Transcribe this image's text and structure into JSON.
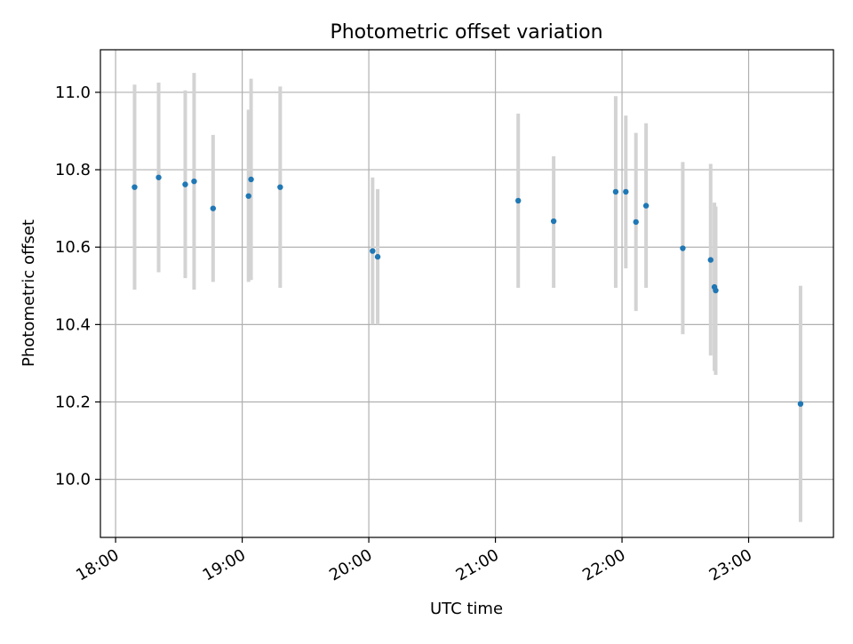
{
  "chart_data": {
    "type": "scatter",
    "title": "Photometric offset variation",
    "xlabel": "UTC time",
    "ylabel": "Photometric offset",
    "x_ticks": [
      "18:00",
      "19:00",
      "20:00",
      "21:00",
      "22:00",
      "23:00"
    ],
    "x_tick_hours": [
      18,
      19,
      20,
      21,
      22,
      23
    ],
    "y_ticks": [
      "10.0",
      "10.2",
      "10.4",
      "10.6",
      "10.8",
      "11.0"
    ],
    "y_tick_values": [
      10.0,
      10.2,
      10.4,
      10.6,
      10.8,
      11.0
    ],
    "xlim": [
      "17:53",
      "23:40"
    ],
    "xlim_hours": [
      17.88,
      23.67
    ],
    "ylim": [
      9.85,
      11.11
    ],
    "grid": true,
    "colors": {
      "point": "#1f77b4",
      "errorbar": "#d3d3d3",
      "grid": "#b0b0b0"
    },
    "series": [
      {
        "points": [
          {
            "time": "18:09",
            "x": 18.15,
            "y": 10.755,
            "ylow": 10.49,
            "yhigh": 11.02
          },
          {
            "time": "18:20",
            "x": 18.34,
            "y": 10.78,
            "ylow": 10.535,
            "yhigh": 11.025
          },
          {
            "time": "18:33",
            "x": 18.55,
            "y": 10.762,
            "ylow": 10.52,
            "yhigh": 11.005
          },
          {
            "time": "18:37",
            "x": 18.62,
            "y": 10.77,
            "ylow": 10.49,
            "yhigh": 11.05
          },
          {
            "time": "18:46",
            "x": 18.77,
            "y": 10.7,
            "ylow": 10.51,
            "yhigh": 10.89
          },
          {
            "time": "19:03",
            "x": 19.05,
            "y": 10.732,
            "ylow": 10.51,
            "yhigh": 10.955
          },
          {
            "time": "19:04",
            "x": 19.07,
            "y": 10.775,
            "ylow": 10.515,
            "yhigh": 11.035
          },
          {
            "time": "19:18",
            "x": 19.3,
            "y": 10.755,
            "ylow": 10.495,
            "yhigh": 11.015
          },
          {
            "time": "20:02",
            "x": 20.03,
            "y": 10.59,
            "ylow": 10.4,
            "yhigh": 10.78
          },
          {
            "time": "20:04",
            "x": 20.07,
            "y": 10.575,
            "ylow": 10.4,
            "yhigh": 10.75
          },
          {
            "time": "21:11",
            "x": 21.18,
            "y": 10.72,
            "ylow": 10.495,
            "yhigh": 10.945
          },
          {
            "time": "21:28",
            "x": 21.46,
            "y": 10.667,
            "ylow": 10.495,
            "yhigh": 10.835
          },
          {
            "time": "21:57",
            "x": 21.95,
            "y": 10.743,
            "ylow": 10.495,
            "yhigh": 10.99
          },
          {
            "time": "22:02",
            "x": 22.03,
            "y": 10.743,
            "ylow": 10.545,
            "yhigh": 10.94
          },
          {
            "time": "22:07",
            "x": 22.11,
            "y": 10.665,
            "ylow": 10.435,
            "yhigh": 10.895
          },
          {
            "time": "22:11",
            "x": 22.19,
            "y": 10.707,
            "ylow": 10.495,
            "yhigh": 10.92
          },
          {
            "time": "22:29",
            "x": 22.48,
            "y": 10.597,
            "ylow": 10.375,
            "yhigh": 10.82
          },
          {
            "time": "22:42",
            "x": 22.7,
            "y": 10.567,
            "ylow": 10.32,
            "yhigh": 10.815
          },
          {
            "time": "22:44",
            "x": 22.73,
            "y": 10.497,
            "ylow": 10.28,
            "yhigh": 10.715
          },
          {
            "time": "22:44",
            "x": 22.74,
            "y": 10.488,
            "ylow": 10.27,
            "yhigh": 10.705
          },
          {
            "time": "23:25",
            "x": 23.41,
            "y": 10.195,
            "ylow": 9.89,
            "yhigh": 10.5
          }
        ]
      }
    ]
  }
}
